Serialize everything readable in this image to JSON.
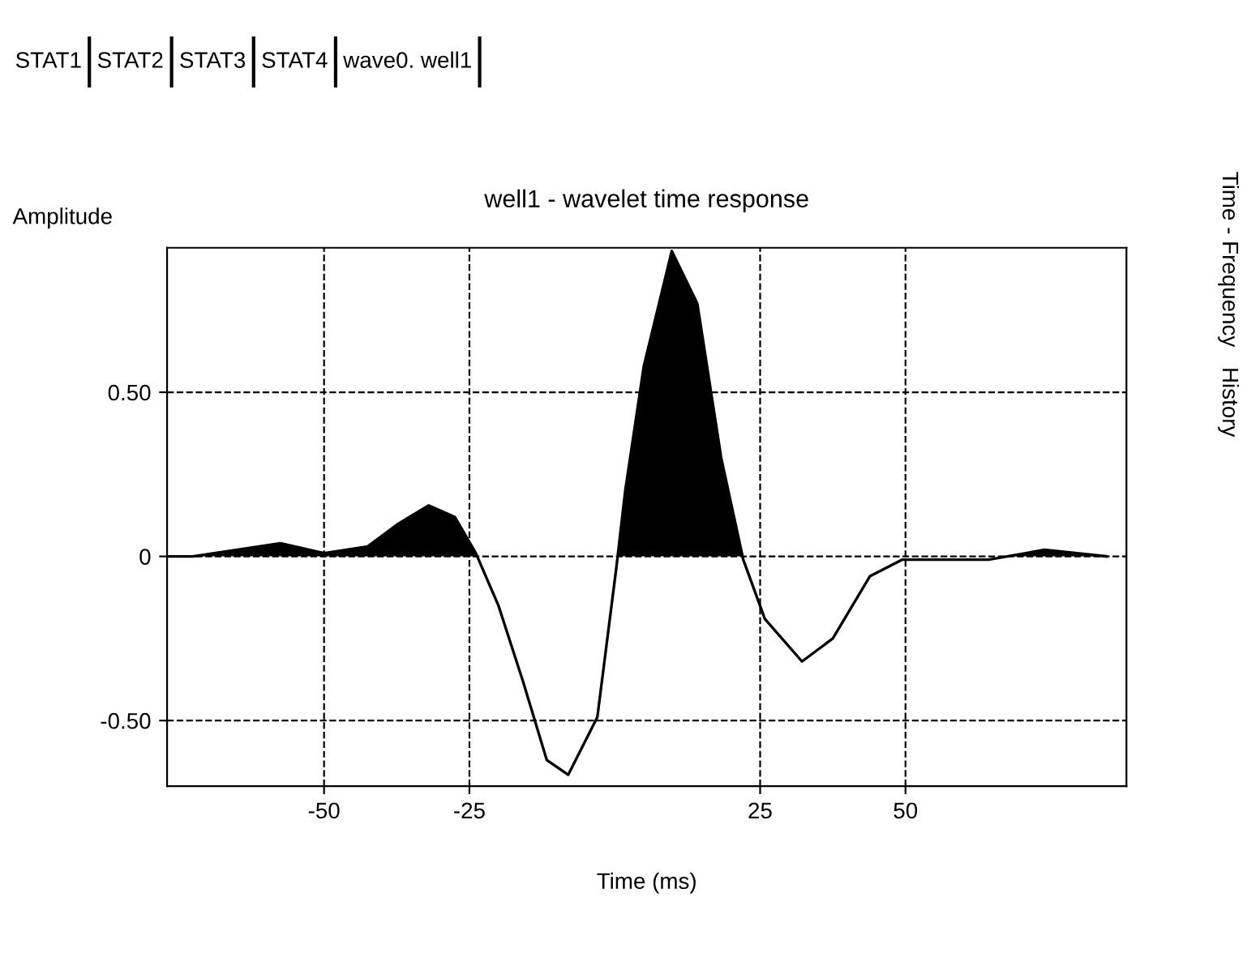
{
  "chart_data": {
    "type": "line",
    "title": "well1 - wavelet time response",
    "xlabel": "Time (ms)",
    "ylabel": "Amplitude",
    "series": [
      {
        "type": "area",
        "color": "#000000",
        "x": [
          -76.7,
          -72.6,
          -57.5,
          -50,
          -42.5,
          -37.2,
          -32,
          -27.5,
          -23.9,
          -23.7,
          -10,
          0.5,
          1.8,
          5,
          9.8,
          14.2,
          18.3,
          22.0,
          40,
          67.5,
          73.9,
          84.6
        ],
        "values": [
          0,
          0,
          0.04,
          0.01,
          0.03,
          0.1,
          0.155,
          0.12,
          0.01,
          0,
          null,
          0,
          0.2,
          0.58,
          0.93,
          0.77,
          0.3,
          0,
          null,
          0,
          0.02,
          0
        ]
      },
      {
        "color": "#000000",
        "x": [
          -76.7,
          -72.6,
          -57.5,
          -50,
          -42.5,
          -37.2,
          -32,
          -27.5,
          -23.9,
          -20,
          -15.8,
          -11.7,
          -8,
          -3,
          0.3,
          1.8,
          5,
          9.8,
          14.2,
          18.3,
          22.1,
          25.8,
          32.2,
          37.5,
          43.9,
          49.4,
          56.8,
          64.3,
          73.9,
          84.6
        ],
        "values": [
          0,
          0,
          0.04,
          0.01,
          0.03,
          0.1,
          0.155,
          0.12,
          0.01,
          -0.15,
          -0.38,
          -0.62,
          -0.665,
          -0.49,
          -0.03,
          0.2,
          0.58,
          0.93,
          0.77,
          0.3,
          -0.01,
          -0.19,
          -0.32,
          -0.25,
          -0.06,
          -0.01,
          -0.01,
          -0.01,
          0.02,
          0
        ]
      }
    ],
    "xlim": [
      -77,
      88
    ],
    "ylim": [
      -0.7,
      0.94
    ],
    "xticks": [
      -50,
      -25,
      25,
      50
    ],
    "yticks": [
      {
        "value": -0.5,
        "label": "-0.50"
      },
      0,
      {
        "value": 0.5,
        "label": "0.50"
      }
    ],
    "grid": true,
    "annotations": [
      "STAT1",
      "STAT2",
      "STAT3",
      "STAT4",
      "wave0. well1",
      "Time - Frequency",
      "History"
    ]
  }
}
